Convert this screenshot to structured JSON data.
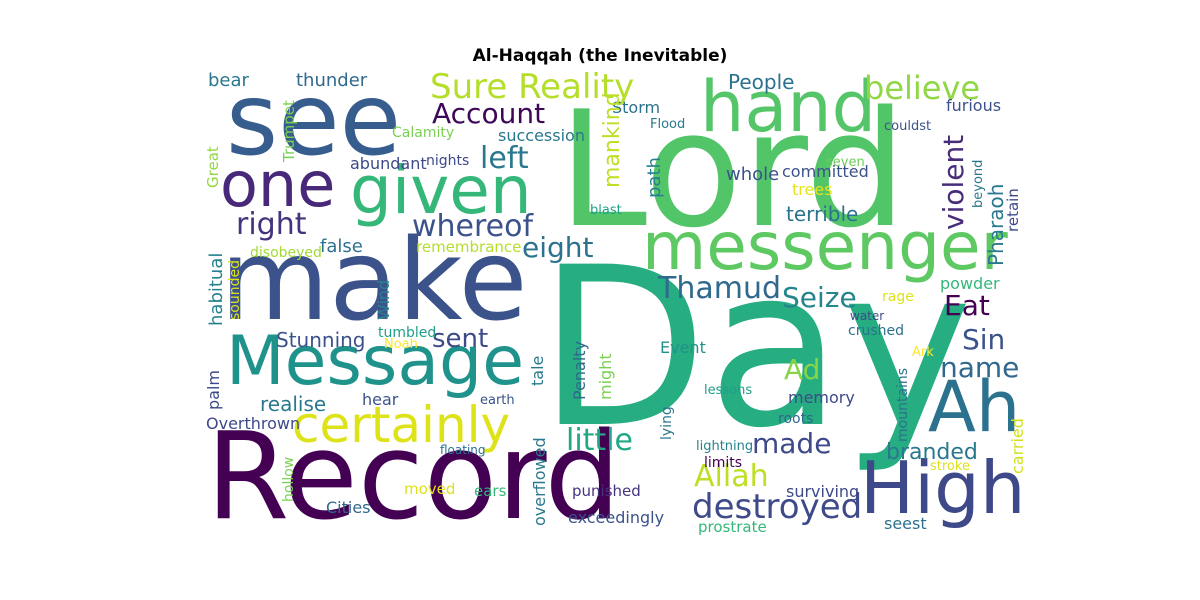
{
  "title": "Al-Haqqah (the Inevitable)",
  "words": [
    {
      "text": "Day",
      "color": "#26ad81"
    },
    {
      "text": "Lord",
      "color": "#52c569"
    },
    {
      "text": "Record",
      "color": "#440154"
    },
    {
      "text": "make",
      "color": "#3b528b"
    },
    {
      "text": "see",
      "color": "#365d8d"
    },
    {
      "text": "messenger",
      "color": "#5ec962"
    },
    {
      "text": "Message",
      "color": "#20928c"
    },
    {
      "text": "given",
      "color": "#35b779"
    },
    {
      "text": "hand",
      "color": "#54c568"
    },
    {
      "text": "High",
      "color": "#3e4989"
    },
    {
      "text": "Ah",
      "color": "#2c728e"
    },
    {
      "text": "one",
      "color": "#482878"
    },
    {
      "text": "certainly",
      "color": "#dde318"
    },
    {
      "text": "Sure Reality",
      "color": "#b5de2b"
    },
    {
      "text": "believe",
      "color": "#8fd744"
    },
    {
      "text": "Account",
      "color": "#3e075a"
    },
    {
      "text": "whereof",
      "color": "#3b528b"
    },
    {
      "text": "destroyed",
      "color": "#3e4a89"
    },
    {
      "text": "Allah",
      "color": "#bddf26"
    },
    {
      "text": "right",
      "color": "#46337e"
    },
    {
      "text": "left",
      "color": "#2a788e"
    },
    {
      "text": "eight",
      "color": "#2c728e"
    },
    {
      "text": "Thamud",
      "color": "#31688e"
    },
    {
      "text": "Seize",
      "color": "#25858e"
    },
    {
      "text": "sent",
      "color": "#3e4989"
    },
    {
      "text": "little",
      "color": "#22a884"
    },
    {
      "text": "made",
      "color": "#3e4989"
    },
    {
      "text": "name",
      "color": "#31688e"
    },
    {
      "text": "Ad",
      "color": "#86d549"
    },
    {
      "text": "Eat",
      "color": "#440154"
    },
    {
      "text": "Sin",
      "color": "#3b528b"
    },
    {
      "text": "People",
      "color": "#472c7a"
    },
    {
      "text": "thunder",
      "color": "#2c728e"
    },
    {
      "text": "bear",
      "color": "#bddf26"
    },
    {
      "text": "Stunning",
      "color": "#2a788e"
    },
    {
      "text": "realise",
      "color": "#3b528b"
    },
    {
      "text": "branded",
      "color": "#2a788e"
    },
    {
      "text": "terrible",
      "color": "#2a788e"
    },
    {
      "text": "false",
      "color": "#2c728e"
    },
    {
      "text": "Storm",
      "color": "#2c728e"
    },
    {
      "text": "Calamity",
      "color": "#26828e"
    },
    {
      "text": "succession",
      "color": "#31688e"
    },
    {
      "text": "abundant",
      "color": "#2a788e"
    },
    {
      "text": "nights",
      "color": "#2c728e"
    },
    {
      "text": "committed",
      "color": "#7ad151"
    },
    {
      "text": "whole",
      "color": "#2a788e"
    },
    {
      "text": "trees",
      "color": "#3e4989"
    },
    {
      "text": "blast",
      "color": "#3e4989"
    },
    {
      "text": "Flood",
      "color": "#7ad151"
    },
    {
      "text": "couldst",
      "color": "#93d741"
    },
    {
      "text": "seven",
      "color": "#3b528b"
    },
    {
      "text": "furious",
      "color": "#26828e"
    },
    {
      "text": "rage",
      "color": "#3b528b"
    },
    {
      "text": "water",
      "color": "#e5e419"
    },
    {
      "text": "crushed",
      "color": "#1f9e89"
    },
    {
      "text": "powder",
      "color": "#2a788e"
    },
    {
      "text": "Ark",
      "color": "#3b528b"
    },
    {
      "text": "stroke",
      "color": "#6ece58"
    },
    {
      "text": "seest",
      "color": "#3b528b"
    },
    {
      "text": "remembrance",
      "color": "#2a788e"
    },
    {
      "text": "disobeyed",
      "color": "#3e4989"
    },
    {
      "text": "tumbled",
      "color": "#35b779"
    },
    {
      "text": "Noah",
      "color": "#dde318"
    },
    {
      "text": "Event",
      "color": "#3e4989"
    },
    {
      "text": "hear",
      "color": "#2c728e"
    },
    {
      "text": "earth",
      "color": "#fde725"
    },
    {
      "text": "Overthrown",
      "color": "#d0e11c"
    },
    {
      "text": "lessons",
      "color": "#2c728e"
    },
    {
      "text": "memory",
      "color": "#dde318"
    },
    {
      "text": "roots",
      "color": "#2c728e"
    },
    {
      "text": "lightning",
      "color": "#b5de2b"
    },
    {
      "text": "limits",
      "color": "#a2da37"
    },
    {
      "text": "floating",
      "color": "#dde318"
    },
    {
      "text": "Cities",
      "color": "#26828e"
    },
    {
      "text": "moved",
      "color": "#1f9e89"
    },
    {
      "text": "ears",
      "color": "#fde725"
    },
    {
      "text": "punished",
      "color": "#3e4989"
    },
    {
      "text": "exceedingly",
      "color": "#2a788e"
    },
    {
      "text": "surviving",
      "color": "#31688e"
    },
    {
      "text": "prostrate",
      "color": "#7ad151"
    },
    {
      "text": "violent",
      "color": "#20928c"
    },
    {
      "text": "Pharaoh",
      "color": "#3b528b"
    },
    {
      "text": "mankind",
      "color": "#3b528b"
    },
    {
      "text": "habitual",
      "color": "#3e4989"
    },
    {
      "text": "Trumpet",
      "color": "#2a788e"
    },
    {
      "text": "Great",
      "color": "#1f9e89"
    },
    {
      "text": "path",
      "color": "#3e4989"
    },
    {
      "text": "beyond",
      "color": "#31688e"
    },
    {
      "text": "retain",
      "color": "#26828e"
    },
    {
      "text": "carried",
      "color": "#440154"
    },
    {
      "text": "mountains",
      "color": "#2c728e"
    },
    {
      "text": "sounded",
      "color": "#7ad151"
    },
    {
      "text": "Wind",
      "color": "#31688e"
    },
    {
      "text": "palm",
      "color": "#dde318"
    },
    {
      "text": "tale",
      "color": "#35b779"
    },
    {
      "text": "Penalty",
      "color": "#2a788e"
    },
    {
      "text": "might",
      "color": "#46337e"
    },
    {
      "text": "lying",
      "color": "#3b528b"
    },
    {
      "text": "hollow",
      "color": "#3e4989"
    },
    {
      "text": "overflowed",
      "color": "#35b779"
    }
  ]
}
